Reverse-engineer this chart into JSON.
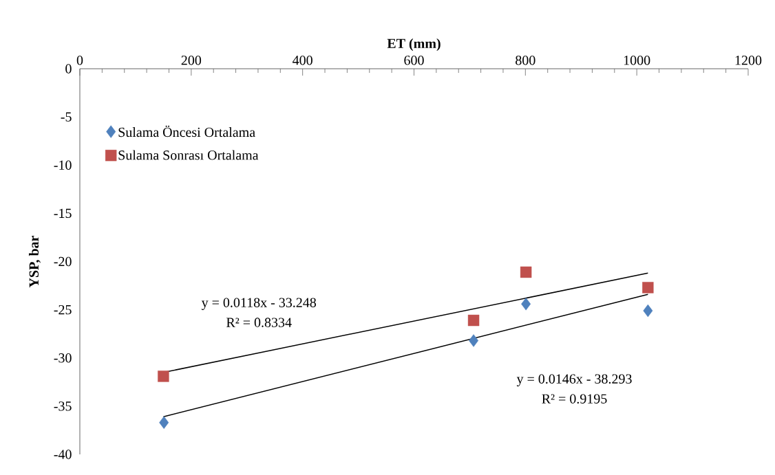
{
  "chart_data": {
    "type": "scatter",
    "xlabel": "ET (mm)",
    "ylabel": "YSP, bar",
    "xlim": [
      0,
      1200
    ],
    "xticks": [
      0,
      200,
      400,
      600,
      800,
      1000,
      1200
    ],
    "ylim": [
      -40,
      0
    ],
    "yticks": [
      -40,
      -35,
      -30,
      -25,
      -20,
      -15,
      -10,
      -5,
      0
    ],
    "grid": false,
    "legend": "top left",
    "series": [
      {
        "name": "Sulama Öncesi Ortalama",
        "marker": "diamond",
        "color": "#4f81bd",
        "x": [
          151,
          707,
          801,
          1020
        ],
        "values": [
          -36.7,
          -28.2,
          -24.4,
          -25.1
        ]
      },
      {
        "name": "Sulama Sonrası Ortalama",
        "marker": "square",
        "color": "#c0504d",
        "x": [
          150,
          707,
          801,
          1020
        ],
        "values": [
          -31.9,
          -26.1,
          -21.1,
          -22.7
        ]
      },
      {
        "type": "line",
        "marker": "none",
        "color": "#000000",
        "x": [
          150,
          1020
        ],
        "values": [
          -31.5,
          -21.2
        ]
      },
      {
        "type": "line",
        "marker": "none",
        "color": "#000000",
        "x": [
          150,
          1020
        ],
        "values": [
          -36.1,
          -23.4
        ]
      }
    ],
    "annotations": [
      "y = 0.0118x - 33.248",
      "R² = 0.8334",
      "y = 0.0146x - 38.293",
      "R² = 0.9195"
    ]
  }
}
